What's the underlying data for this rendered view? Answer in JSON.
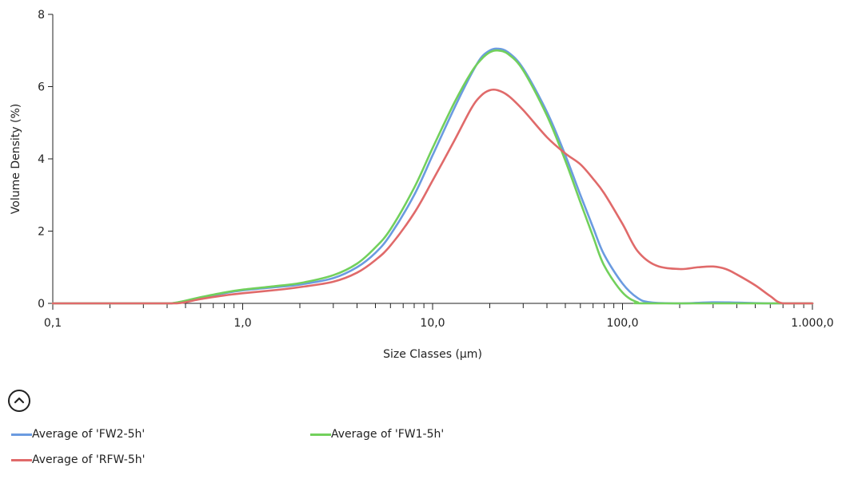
{
  "chart_data": {
    "type": "line",
    "xlabel": "Size Classes (µm)",
    "ylabel": "Volume Density (%)",
    "x_scale": "log",
    "xlim": [
      0.1,
      1000
    ],
    "ylim": [
      0,
      8
    ],
    "x_ticks": [
      {
        "value": 0.1,
        "label": "0,1"
      },
      {
        "value": 1,
        "label": "1,0"
      },
      {
        "value": 10,
        "label": "10,0"
      },
      {
        "value": 100,
        "label": "100,0"
      },
      {
        "value": 1000,
        "label": "1.000,0"
      }
    ],
    "y_ticks": [
      {
        "value": 0,
        "label": "0"
      },
      {
        "value": 2,
        "label": "2"
      },
      {
        "value": 4,
        "label": "4"
      },
      {
        "value": 6,
        "label": "6"
      },
      {
        "value": 8,
        "label": "8"
      }
    ],
    "series": [
      {
        "name": "Average of 'FW2-5h'",
        "color": "#6b9be0",
        "points": [
          [
            0.1,
            0
          ],
          [
            0.3,
            0
          ],
          [
            0.42,
            0
          ],
          [
            0.6,
            0.15
          ],
          [
            0.8,
            0.28
          ],
          [
            1.0,
            0.36
          ],
          [
            1.5,
            0.45
          ],
          [
            2.0,
            0.52
          ],
          [
            3.0,
            0.7
          ],
          [
            4.0,
            1.0
          ],
          [
            5.0,
            1.4
          ],
          [
            6.0,
            1.9
          ],
          [
            8.0,
            3.0
          ],
          [
            10.0,
            4.1
          ],
          [
            13.0,
            5.4
          ],
          [
            16.0,
            6.35
          ],
          [
            18.0,
            6.8
          ],
          [
            20.0,
            7.0
          ],
          [
            22.0,
            7.05
          ],
          [
            25.0,
            6.95
          ],
          [
            30.0,
            6.5
          ],
          [
            40.0,
            5.3
          ],
          [
            50.0,
            4.1
          ],
          [
            60.0,
            3.0
          ],
          [
            70.0,
            2.1
          ],
          [
            80.0,
            1.35
          ],
          [
            100.0,
            0.55
          ],
          [
            120.0,
            0.15
          ],
          [
            140.0,
            0.03
          ],
          [
            200.0,
            0
          ],
          [
            300.0,
            0.03
          ],
          [
            400.0,
            0.02
          ],
          [
            600.0,
            0
          ],
          [
            1000.0,
            0
          ]
        ]
      },
      {
        "name": "Average of 'FW1-5h'",
        "color": "#72d05c",
        "points": [
          [
            0.1,
            0
          ],
          [
            0.3,
            0
          ],
          [
            0.42,
            0
          ],
          [
            0.6,
            0.17
          ],
          [
            0.8,
            0.3
          ],
          [
            1.0,
            0.38
          ],
          [
            1.5,
            0.48
          ],
          [
            2.0,
            0.56
          ],
          [
            3.0,
            0.78
          ],
          [
            4.0,
            1.1
          ],
          [
            5.0,
            1.55
          ],
          [
            6.0,
            2.05
          ],
          [
            8.0,
            3.2
          ],
          [
            10.0,
            4.3
          ],
          [
            13.0,
            5.55
          ],
          [
            16.0,
            6.4
          ],
          [
            18.0,
            6.75
          ],
          [
            20.0,
            6.95
          ],
          [
            22.0,
            7.0
          ],
          [
            25.0,
            6.9
          ],
          [
            30.0,
            6.45
          ],
          [
            40.0,
            5.2
          ],
          [
            50.0,
            3.95
          ],
          [
            60.0,
            2.8
          ],
          [
            70.0,
            1.85
          ],
          [
            80.0,
            1.05
          ],
          [
            100.0,
            0.3
          ],
          [
            120.0,
            0.03
          ],
          [
            140.0,
            0
          ],
          [
            1000.0,
            0
          ]
        ]
      },
      {
        "name": "Average of 'RFW-5h'",
        "color": "#e06a6a",
        "points": [
          [
            0.1,
            0
          ],
          [
            0.3,
            0
          ],
          [
            0.45,
            0
          ],
          [
            0.6,
            0.12
          ],
          [
            0.8,
            0.22
          ],
          [
            1.0,
            0.28
          ],
          [
            1.5,
            0.37
          ],
          [
            2.0,
            0.45
          ],
          [
            3.0,
            0.6
          ],
          [
            4.0,
            0.85
          ],
          [
            5.0,
            1.2
          ],
          [
            6.0,
            1.6
          ],
          [
            8.0,
            2.5
          ],
          [
            10.0,
            3.4
          ],
          [
            13.0,
            4.5
          ],
          [
            16.0,
            5.4
          ],
          [
            18.0,
            5.75
          ],
          [
            20.0,
            5.9
          ],
          [
            22.0,
            5.9
          ],
          [
            25.0,
            5.75
          ],
          [
            30.0,
            5.35
          ],
          [
            40.0,
            4.6
          ],
          [
            50.0,
            4.15
          ],
          [
            60.0,
            3.85
          ],
          [
            70.0,
            3.45
          ],
          [
            80.0,
            3.05
          ],
          [
            100.0,
            2.2
          ],
          [
            120.0,
            1.45
          ],
          [
            150.0,
            1.05
          ],
          [
            200.0,
            0.95
          ],
          [
            250.0,
            1.0
          ],
          [
            300.0,
            1.02
          ],
          [
            350.0,
            0.95
          ],
          [
            400.0,
            0.8
          ],
          [
            500.0,
            0.5
          ],
          [
            600.0,
            0.2
          ],
          [
            700.0,
            0
          ],
          [
            1000.0,
            0
          ]
        ]
      }
    ],
    "legend_placement": "bottom-left"
  },
  "legend": {
    "toggle_icon": "chevron-up-icon"
  }
}
